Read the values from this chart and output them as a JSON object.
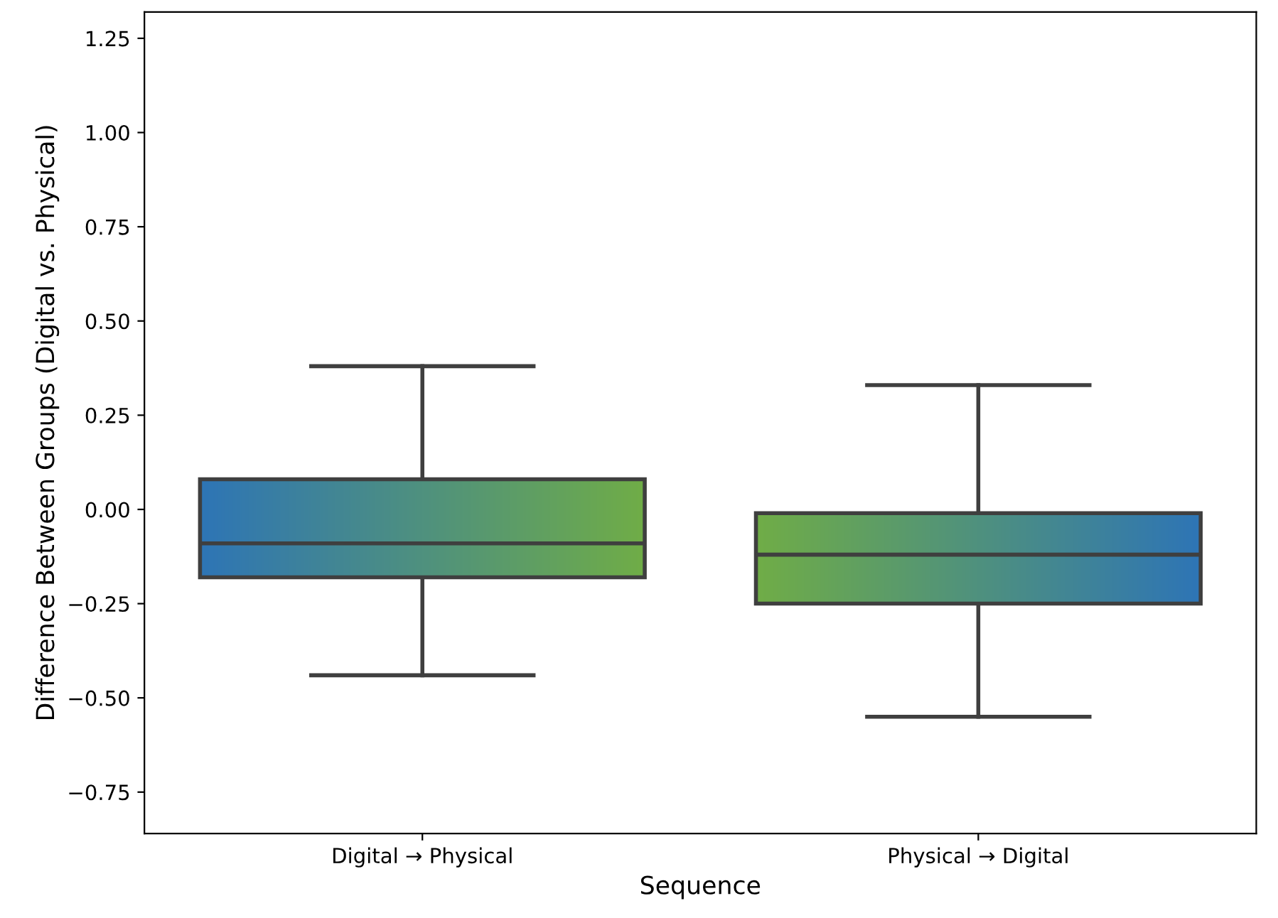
{
  "chart_data": {
    "type": "box",
    "xlabel": "Sequence",
    "ylabel": "Difference Between Groups (Digital vs. Physical)",
    "categories": [
      "Digital → Physical",
      "Physical → Digital"
    ],
    "boxes": [
      {
        "low": -0.44,
        "q1": -0.18,
        "median": -0.09,
        "q3": 0.08,
        "high": 0.38
      },
      {
        "low": -0.55,
        "q1": -0.25,
        "median": -0.12,
        "q3": -0.01,
        "high": 0.33
      }
    ],
    "colors": [
      [
        "#2e75b6",
        "#70ad47"
      ],
      [
        "#70ad47",
        "#2e75b6"
      ]
    ],
    "ylim": [
      -0.86,
      1.32
    ],
    "yticks": [
      {
        "value": -0.75,
        "label": "−0.75"
      },
      {
        "value": -0.5,
        "label": "−0.50"
      },
      {
        "value": -0.25,
        "label": "−0.25"
      },
      {
        "value": 0,
        "label": "0.00"
      },
      {
        "value": 0.25,
        "label": "0.25"
      },
      {
        "value": 0.5,
        "label": "0.50"
      },
      {
        "value": 0.75,
        "label": "0.75"
      },
      {
        "value": 1,
        "label": "1.00"
      },
      {
        "value": 1.25,
        "label": "1.25"
      }
    ],
    "grid": false
  }
}
